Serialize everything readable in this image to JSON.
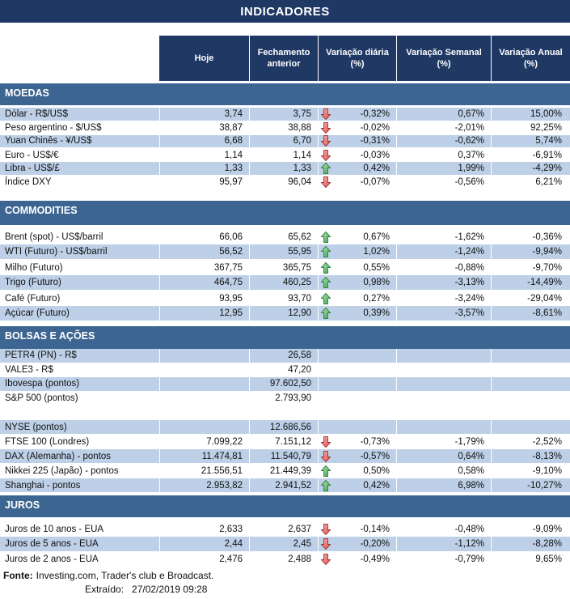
{
  "title": "INDICADORES",
  "columns": [
    "Hoje",
    "Fechamento anterior",
    "Variação diária (%)",
    "Variação Semanal (%)",
    "Variação Anual (%)"
  ],
  "sections": [
    {
      "name": "MOEDAS",
      "rows": [
        {
          "label": "Dólar - R$/US$",
          "hoje": "3,74",
          "fechamento": "3,75",
          "arrow": "down",
          "diaria": "-0,32%",
          "semanal": "0,67%",
          "anual": "15,00%"
        },
        {
          "label": "Peso argentino - $/US$",
          "hoje": "38,87",
          "fechamento": "38,88",
          "arrow": "down",
          "diaria": "-0,02%",
          "semanal": "-2,01%",
          "anual": "92,25%"
        },
        {
          "label": "Yuan Chinês - ¥/US$",
          "hoje": "6,68",
          "fechamento": "6,70",
          "arrow": "down",
          "diaria": "-0,31%",
          "semanal": "-0,62%",
          "anual": "5,74%"
        },
        {
          "label": "Euro - US$/€",
          "hoje": "1,14",
          "fechamento": "1,14",
          "arrow": "down",
          "diaria": "-0,03%",
          "semanal": "0,37%",
          "anual": "-6,91%"
        },
        {
          "label": "Libra - US$/£",
          "hoje": "1,33",
          "fechamento": "1,33",
          "arrow": "up",
          "diaria": "0,42%",
          "semanal": "1,99%",
          "anual": "-4,29%"
        },
        {
          "label": "Índice DXY",
          "hoje": "95,97",
          "fechamento": "96,04",
          "arrow": "down",
          "diaria": "-0,07%",
          "semanal": "-0,56%",
          "anual": "6,21%"
        }
      ]
    },
    {
      "name": "COMMODITIES",
      "rows": [
        {
          "label": "Brent (spot) - US$/barril",
          "hoje": "66,06",
          "fechamento": "65,62",
          "arrow": "up",
          "diaria": "0,67%",
          "semanal": "-1,62%",
          "anual": "-0,36%"
        },
        {
          "label": "WTI (Futuro) - US$/barril",
          "hoje": "56,52",
          "fechamento": "55,95",
          "arrow": "up",
          "diaria": "1,02%",
          "semanal": "-1,24%",
          "anual": "-9,94%"
        },
        {
          "label": "Milho (Futuro)",
          "hoje": "367,75",
          "fechamento": "365,75",
          "arrow": "up",
          "diaria": "0,55%",
          "semanal": "-0,88%",
          "anual": "-9,70%"
        },
        {
          "label": "Trigo (Futuro)",
          "hoje": "464,75",
          "fechamento": "460,25",
          "arrow": "up",
          "diaria": "0,98%",
          "semanal": "-3,13%",
          "anual": "-14,49%"
        },
        {
          "label": "Café (Futuro)",
          "hoje": "93,95",
          "fechamento": "93,70",
          "arrow": "up",
          "diaria": "0,27%",
          "semanal": "-3,24%",
          "anual": "-29,04%"
        },
        {
          "label": "Açúcar (Futuro)",
          "hoje": "12,95",
          "fechamento": "12,90",
          "arrow": "up",
          "diaria": "0,39%",
          "semanal": "-3,57%",
          "anual": "-8,61%"
        }
      ]
    },
    {
      "name": "BOLSAS E AÇÕES",
      "rows": [
        {
          "label": "PETR4 (PN) - R$",
          "hoje": "",
          "fechamento": "26,58",
          "arrow": "",
          "diaria": "",
          "semanal": "",
          "anual": ""
        },
        {
          "label": "VALE3 - R$",
          "hoje": "",
          "fechamento": "47,20",
          "arrow": "",
          "diaria": "",
          "semanal": "",
          "anual": ""
        },
        {
          "label": "Ibovespa (pontos)",
          "hoje": "",
          "fechamento": "97.602,50",
          "arrow": "",
          "diaria": "",
          "semanal": "",
          "anual": ""
        },
        {
          "label": "S&P 500 (pontos)",
          "hoje": "",
          "fechamento": "2.793,90",
          "arrow": "",
          "diaria": "",
          "semanal": "",
          "anual": ""
        },
        {
          "label": "NYSE (pontos)",
          "hoje": "",
          "fechamento": "12.686,56",
          "arrow": "",
          "diaria": "",
          "semanal": "",
          "anual": ""
        },
        {
          "label": "FTSE 100 (Londres)",
          "hoje": "7.099,22",
          "fechamento": "7.151,12",
          "arrow": "down",
          "diaria": "-0,73%",
          "semanal": "-1,79%",
          "anual": "-2,52%"
        },
        {
          "label": "DAX (Alemanha) - pontos",
          "hoje": "11.474,81",
          "fechamento": "11.540,79",
          "arrow": "down",
          "diaria": "-0,57%",
          "semanal": "0,64%",
          "anual": "-8,13%"
        },
        {
          "label": "Nikkei 225 (Japão) - pontos",
          "hoje": "21.556,51",
          "fechamento": "21.449,39",
          "arrow": "up",
          "diaria": "0,50%",
          "semanal": "0,58%",
          "anual": "-9,10%"
        },
        {
          "label": "Shanghai - pontos",
          "hoje": "2.953,82",
          "fechamento": "2.941,52",
          "arrow": "up",
          "diaria": "0,42%",
          "semanal": "6,98%",
          "anual": "-10,27%"
        }
      ]
    },
    {
      "name": "JUROS",
      "rows": [
        {
          "label": "Juros de 10 anos - EUA",
          "hoje": "2,633",
          "fechamento": "2,637",
          "arrow": "down",
          "diaria": "-0,14%",
          "semanal": "-0,48%",
          "anual": "-9,09%"
        },
        {
          "label": "Juros de 5 anos - EUA",
          "hoje": "2,44",
          "fechamento": "2,45",
          "arrow": "down",
          "diaria": "-0,20%",
          "semanal": "-1,12%",
          "anual": "-8,28%"
        },
        {
          "label": "Juros de 2 anos - EUA",
          "hoje": "2,476",
          "fechamento": "2,488",
          "arrow": "down",
          "diaria": "-0,49%",
          "semanal": "-0,79%",
          "anual": "9,65%"
        }
      ]
    }
  ],
  "footer": {
    "fonte_label": "Fonte:",
    "fonte_text": "Investing.com, Trader's club e Broadcast.",
    "extraido_label": "Extraído:",
    "extraido_value": "27/02/2019 09:28"
  },
  "colors": {
    "navy": "#1F3864",
    "section_blue": "#3D6591",
    "row_blue": "#BDD0E7",
    "arrow_up_fill_light": "#B2E3B8",
    "arrow_up_fill_dark": "#3FA04F",
    "arrow_up_border": "#2E7D39",
    "arrow_down_fill_light": "#F6B3B1",
    "arrow_down_fill_dark": "#D9504E",
    "arrow_down_border": "#A33230"
  }
}
